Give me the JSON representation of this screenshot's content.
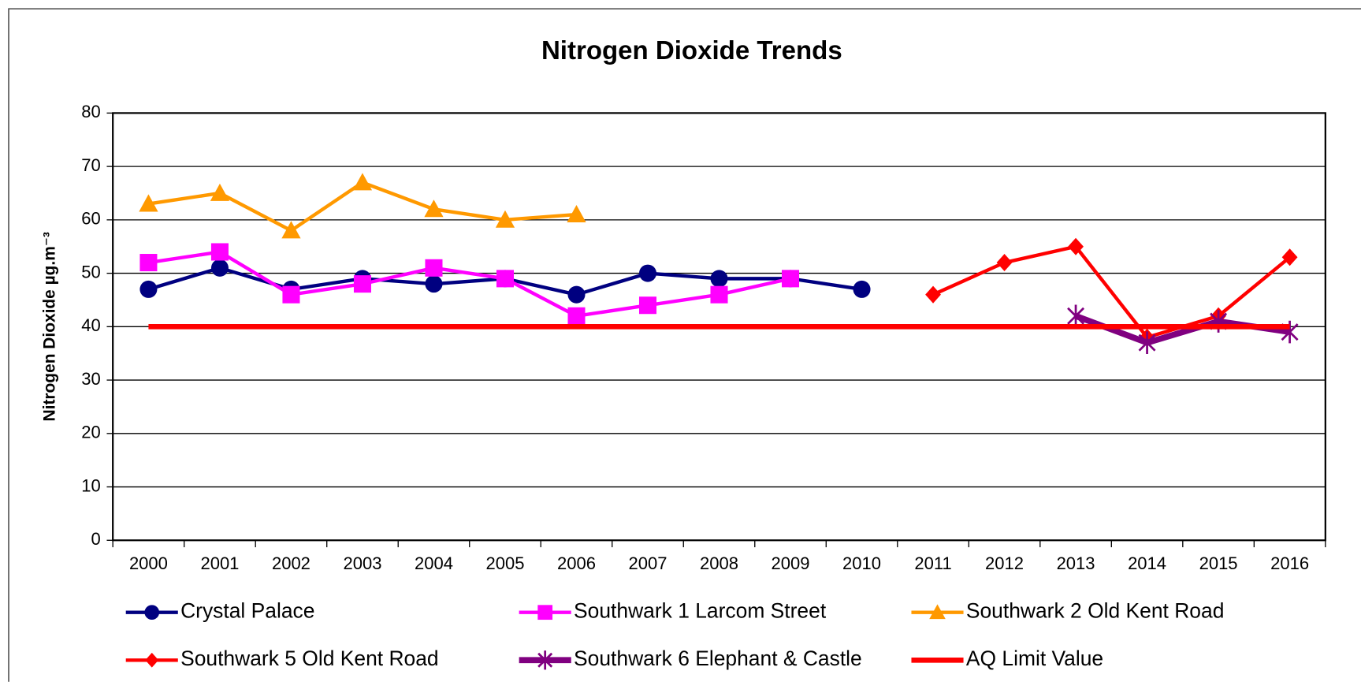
{
  "chart_data": {
    "type": "line",
    "title": "Nitrogen Dioxide Trends",
    "y_label": "Nitrogen Dioxide  µg.m⁻³",
    "categories": [
      "2000",
      "2001",
      "2002",
      "2003",
      "2004",
      "2005",
      "2006",
      "2007",
      "2008",
      "2009",
      "2010",
      "2011",
      "2012",
      "2013",
      "2014",
      "2015",
      "2016"
    ],
    "ylim": [
      0,
      80
    ],
    "yticks": [
      0,
      10,
      20,
      30,
      40,
      50,
      60,
      70,
      80
    ],
    "grid": true,
    "series": [
      {
        "name": "Crystal Palace",
        "color": "#000080",
        "marker": "circle",
        "values": [
          47,
          51,
          47,
          49,
          48,
          49,
          46,
          50,
          49,
          49,
          47,
          null,
          null,
          null,
          null,
          null,
          null
        ]
      },
      {
        "name": "Southwark 1 Larcom Street",
        "color": "#ff00ff",
        "marker": "square",
        "values": [
          52,
          54,
          46,
          48,
          51,
          49,
          42,
          44,
          46,
          49,
          null,
          null,
          null,
          null,
          null,
          null,
          null
        ]
      },
      {
        "name": "Southwark 2 Old Kent Road",
        "color": "#ff9900",
        "marker": "triangle",
        "values": [
          63,
          65,
          58,
          67,
          62,
          60,
          61,
          null,
          null,
          null,
          null,
          null,
          null,
          null,
          null,
          null,
          null
        ]
      },
      {
        "name": "Southwark 5 Old Kent Road",
        "color": "#ff0000",
        "marker": "diamond",
        "values": [
          null,
          null,
          null,
          null,
          null,
          null,
          null,
          null,
          null,
          null,
          null,
          46,
          52,
          55,
          38,
          42,
          53
        ]
      },
      {
        "name": "Southwark 6 Elephant & Castle",
        "color": "#800080",
        "marker": "star",
        "values": [
          null,
          null,
          null,
          null,
          null,
          null,
          null,
          null,
          null,
          null,
          null,
          null,
          null,
          42,
          37,
          41,
          39
        ]
      },
      {
        "name": "AQ Limit Value",
        "color": "#ff0000",
        "marker": "none",
        "values": [
          40,
          40,
          40,
          40,
          40,
          40,
          40,
          40,
          40,
          40,
          40,
          40,
          40,
          40,
          40,
          40,
          40
        ]
      }
    ]
  }
}
